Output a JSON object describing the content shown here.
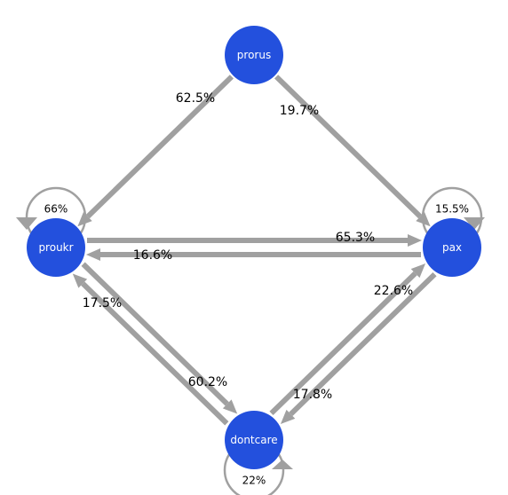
{
  "colors": {
    "node_fill": "#2350dd",
    "node_text": "#ffffff",
    "edge": "#a0a0a0",
    "label_text": "#000000",
    "background": "#ffffff"
  },
  "nodes": [
    {
      "id": "prorus",
      "label": "prorus"
    },
    {
      "id": "proukr",
      "label": "proukr"
    },
    {
      "id": "pax",
      "label": "pax"
    },
    {
      "id": "dontcare",
      "label": "dontcare"
    }
  ],
  "edges": [
    {
      "from": "prorus",
      "to": "proukr",
      "label": "62.5%"
    },
    {
      "from": "prorus",
      "to": "pax",
      "label": "19.7%"
    },
    {
      "from": "pax",
      "to": "proukr",
      "label": "65.3%"
    },
    {
      "from": "proukr",
      "to": "pax",
      "label": "16.6%"
    },
    {
      "from": "proukr",
      "to": "dontcare",
      "label": "17.5%"
    },
    {
      "from": "dontcare",
      "to": "proukr",
      "label": "60.2%"
    },
    {
      "from": "pax",
      "to": "dontcare",
      "label": "22.6%"
    },
    {
      "from": "dontcare",
      "to": "pax",
      "label": "17.8%"
    }
  ],
  "self_loops": [
    {
      "node": "proukr",
      "label": "66%"
    },
    {
      "node": "pax",
      "label": "15.5%"
    },
    {
      "node": "dontcare",
      "label": "22%"
    }
  ]
}
